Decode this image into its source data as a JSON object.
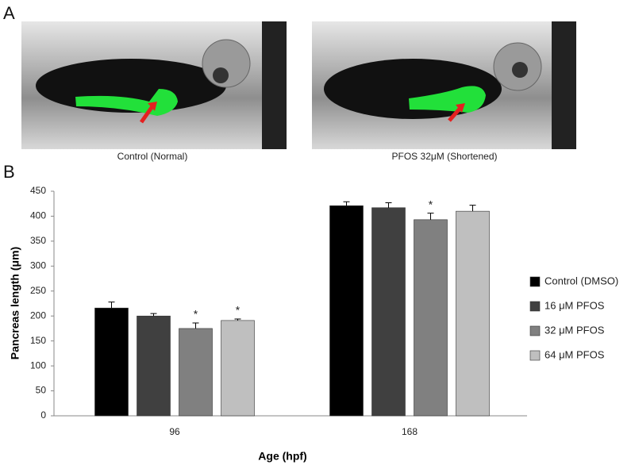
{
  "panel_a": {
    "label": "A",
    "captions": [
      "Control (Normal)",
      "PFOS 32μM (Shortened)"
    ]
  },
  "panel_b": {
    "label": "B"
  },
  "chart_data": {
    "type": "bar",
    "x_label": "Age (hpf)",
    "y_label": "Pancreas length (μm)",
    "categories": [
      "96",
      "168"
    ],
    "series": [
      {
        "name": "Control (DMSO)",
        "color": "#000000",
        "values": [
          216,
          421
        ],
        "errors": [
          12,
          8
        ],
        "markers": [
          null,
          null
        ]
      },
      {
        "name": "16 μM PFOS",
        "color": "#404040",
        "values": [
          200,
          417
        ],
        "errors": [
          5,
          10
        ],
        "markers": [
          null,
          null
        ]
      },
      {
        "name": "32 μM PFOS",
        "color": "#808080",
        "values": [
          175,
          393
        ],
        "errors": [
          11,
          13
        ],
        "markers": [
          "*",
          "*"
        ]
      },
      {
        "name": "64 μM PFOS",
        "color": "#bfbfbf",
        "values": [
          191,
          410
        ],
        "errors": [
          3,
          12
        ],
        "markers": [
          "*",
          null
        ]
      }
    ],
    "ylim": [
      0,
      450
    ],
    "yticks": [
      0,
      50,
      100,
      150,
      200,
      250,
      300,
      350,
      400,
      450
    ],
    "grid": false,
    "legend": "right"
  }
}
